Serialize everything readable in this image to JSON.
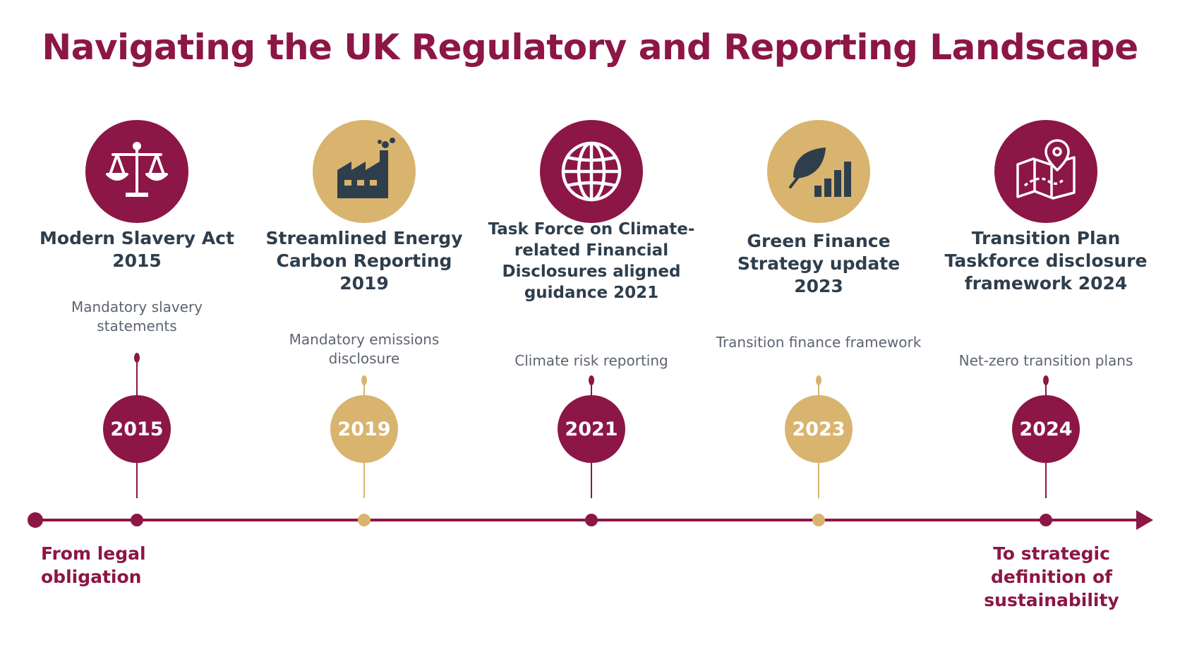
{
  "title": "Navigating the UK Regulatory and Reporting Landscape",
  "colors": {
    "maroon": "#8c1645",
    "gold": "#d8b46e",
    "slate": "#2f3e4c",
    "grey_text": "#5d6470"
  },
  "milestones": [
    {
      "icon": "scales-of-justice-icon",
      "color": "maroon",
      "heading": "Modern Slavery Act 2015",
      "description": "Mandatory slavery statements",
      "year": "2015"
    },
    {
      "icon": "factory-icon",
      "color": "gold",
      "heading": "Streamlined Energy Carbon Reporting 2019",
      "description": "Mandatory emissions disclosure",
      "year": "2019"
    },
    {
      "icon": "globe-icon",
      "color": "maroon",
      "heading": "Task Force on Climate-related Financial Disclosures aligned guidance 2021",
      "description": "Climate risk reporting",
      "year": "2021"
    },
    {
      "icon": "leaf-bar-chart-icon",
      "color": "gold",
      "heading": "Green Finance Strategy update 2023",
      "description": "Transition finance framework",
      "year": "2023"
    },
    {
      "icon": "map-pin-icon",
      "color": "maroon",
      "heading": "Transition Plan Taskforce disclosure framework 2024",
      "description": "Net-zero transition plans",
      "year": "2024"
    }
  ],
  "timeline": {
    "start_label": "From legal obligation",
    "end_label": "To strategic definition of sustainability"
  }
}
